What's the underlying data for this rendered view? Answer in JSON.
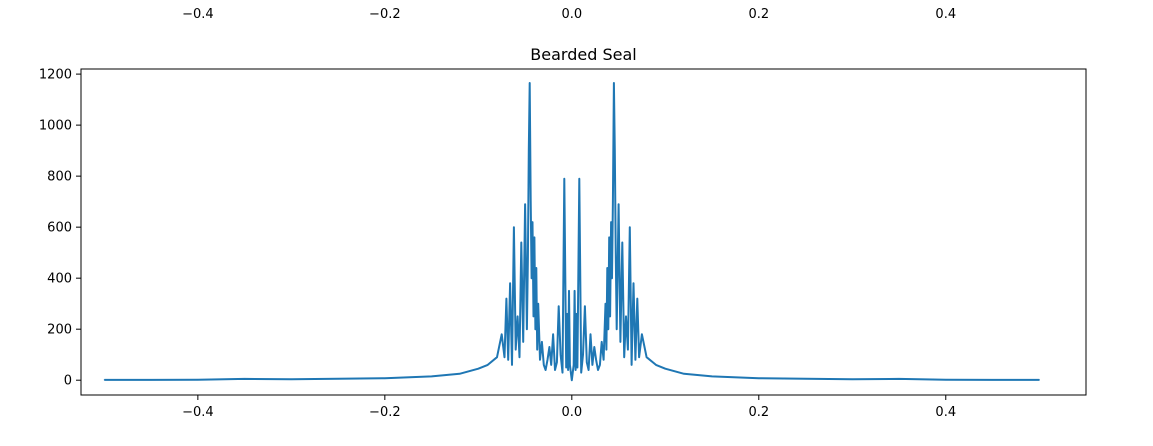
{
  "chart_data": [
    {
      "type": "line",
      "partial": true,
      "title": "",
      "xticks": [
        "−0.4",
        "−0.2",
        "0.0",
        "0.2",
        "0.4"
      ],
      "xtick_values": [
        -0.4,
        -0.2,
        0.0,
        0.2,
        0.4
      ]
    },
    {
      "type": "line",
      "title": "Bearded Seal",
      "xlabel": "",
      "ylabel": "",
      "xlim": [
        -0.525,
        0.55
      ],
      "ylim": [
        -58,
        1220
      ],
      "grid": false,
      "xticks": [
        "−0.4",
        "−0.2",
        "0.0",
        "0.2",
        "0.4"
      ],
      "xtick_values": [
        -0.4,
        -0.2,
        0.0,
        0.2,
        0.4
      ],
      "yticks": [
        "0",
        "200",
        "400",
        "600",
        "800",
        "1000",
        "1200"
      ],
      "ytick_values": [
        0,
        200,
        400,
        600,
        800,
        1000,
        1200
      ],
      "series_color": "#1f77b4",
      "series": [
        {
          "x": [
            -0.5,
            -0.45,
            -0.4,
            -0.35,
            -0.3,
            -0.25,
            -0.2,
            -0.15,
            -0.12,
            -0.1,
            -0.09,
            -0.08,
            -0.075,
            -0.072,
            -0.07,
            -0.068,
            -0.066,
            -0.064,
            -0.062,
            -0.06,
            -0.058,
            -0.056,
            -0.054,
            -0.052,
            -0.05,
            -0.048,
            -0.047,
            -0.046,
            -0.045,
            -0.044,
            -0.043,
            -0.042,
            -0.041,
            -0.04,
            -0.039,
            -0.038,
            -0.037,
            -0.036,
            -0.034,
            -0.032,
            -0.03,
            -0.028,
            -0.026,
            -0.024,
            -0.022,
            -0.02,
            -0.018,
            -0.016,
            -0.014,
            -0.012,
            -0.01,
            -0.008,
            -0.006,
            -0.005,
            -0.004,
            -0.003,
            -0.002,
            0.0,
            0.002,
            0.003,
            0.004,
            0.005,
            0.006,
            0.008,
            0.01,
            0.012,
            0.014,
            0.016,
            0.018,
            0.02,
            0.022,
            0.024,
            0.026,
            0.028,
            0.03,
            0.032,
            0.034,
            0.036,
            0.037,
            0.038,
            0.039,
            0.04,
            0.041,
            0.042,
            0.043,
            0.044,
            0.045,
            0.046,
            0.047,
            0.048,
            0.05,
            0.052,
            0.054,
            0.056,
            0.058,
            0.06,
            0.062,
            0.064,
            0.066,
            0.068,
            0.07,
            0.072,
            0.075,
            0.08,
            0.09,
            0.1,
            0.12,
            0.15,
            0.2,
            0.25,
            0.3,
            0.35,
            0.4,
            0.45,
            0.5
          ],
          "y": [
            1,
            1,
            2,
            5,
            4,
            6,
            8,
            15,
            25,
            45,
            60,
            90,
            180,
            90,
            320,
            80,
            380,
            60,
            600,
            120,
            250,
            90,
            540,
            150,
            690,
            200,
            480,
            900,
            1165,
            700,
            400,
            620,
            250,
            560,
            200,
            440,
            120,
            300,
            80,
            150,
            60,
            40,
            80,
            130,
            60,
            180,
            40,
            70,
            290,
            100,
            30,
            790,
            50,
            260,
            40,
            350,
            60,
            0,
            60,
            350,
            40,
            260,
            50,
            790,
            30,
            100,
            290,
            70,
            40,
            180,
            60,
            130,
            80,
            40,
            60,
            150,
            80,
            300,
            120,
            440,
            200,
            560,
            250,
            620,
            400,
            700,
            1165,
            900,
            480,
            200,
            690,
            150,
            540,
            90,
            250,
            120,
            600,
            60,
            380,
            80,
            320,
            90,
            180,
            90,
            60,
            45,
            25,
            15,
            8,
            6,
            4,
            5,
            2,
            1,
            1
          ]
        }
      ]
    }
  ]
}
